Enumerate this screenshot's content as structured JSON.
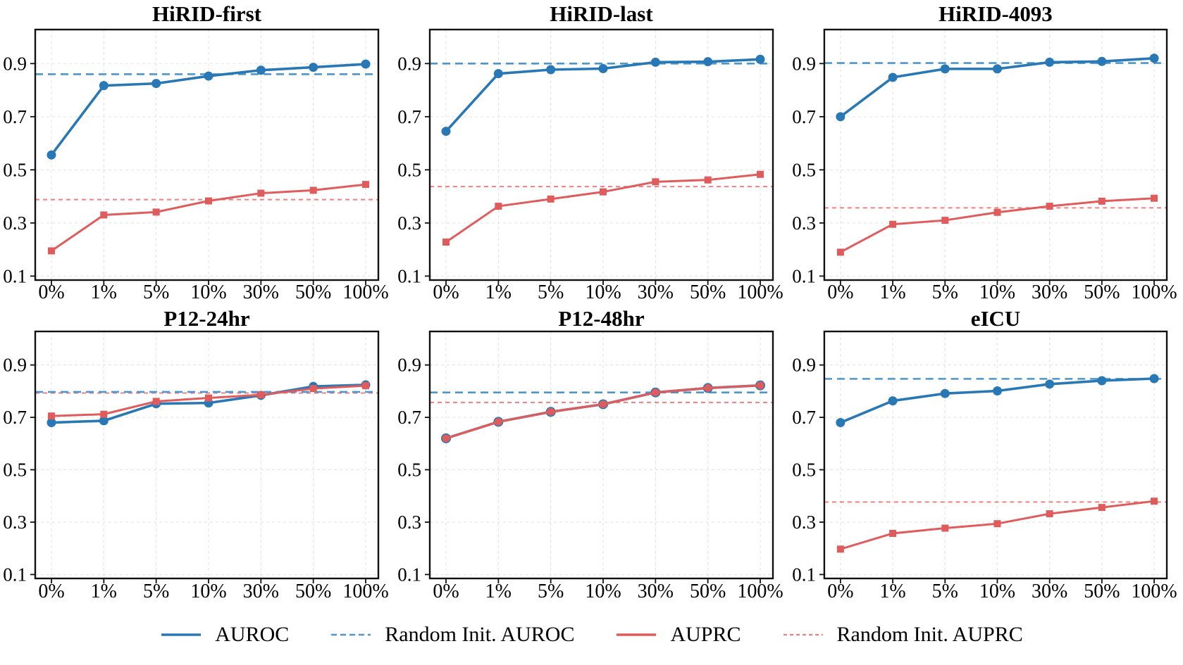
{
  "figure": {
    "description": "Fine-tuning data fraction vs. performance across six clinical datasets",
    "background": "#FFFFFF"
  },
  "colors": {
    "auroc_blue": "#2878B5",
    "random_auroc_blue": "#4C96CE",
    "auprc_red": "#E05C5C",
    "random_auprc_red": "#F08080",
    "grid": "#E5E5E5",
    "axis": "#111111",
    "text": "#000000"
  },
  "legend": {
    "items": [
      {
        "label": "AUROC",
        "style": "solid",
        "color_key": "auroc_blue"
      },
      {
        "label": "Random Init. AUROC",
        "style": "dashed",
        "color_key": "random_auroc_blue"
      },
      {
        "label": "AUPRC",
        "style": "solid",
        "color_key": "auprc_red"
      },
      {
        "label": "Random Init. AUPRC",
        "style": "dashed",
        "color_key": "random_auprc_red"
      }
    ]
  },
  "chart_data": [
    {
      "type": "line",
      "title": "HiRID-first",
      "categories": [
        "0%",
        "1%",
        "5%",
        "10%",
        "30%",
        "50%",
        "100%"
      ],
      "yticks": [
        0.1,
        0.3,
        0.5,
        0.7,
        0.9
      ],
      "ylim": [
        0.085,
        1.028
      ],
      "grid": true,
      "series": [
        {
          "name": "AUROC",
          "values": [
            0.556,
            0.817,
            0.825,
            0.853,
            0.875,
            0.886,
            0.898
          ]
        },
        {
          "name": "AUPRC",
          "values": [
            0.195,
            0.33,
            0.341,
            0.383,
            0.412,
            0.423,
            0.445
          ]
        },
        {
          "name": "Random Init. AUROC",
          "hline": 0.86
        },
        {
          "name": "Random Init. AUPRC",
          "hline": 0.388
        }
      ],
      "auprc_marker": "square",
      "overlap": false
    },
    {
      "type": "line",
      "title": "HiRID-last",
      "categories": [
        "0%",
        "1%",
        "5%",
        "10%",
        "30%",
        "50%",
        "100%"
      ],
      "yticks": [
        0.1,
        0.3,
        0.5,
        0.7,
        0.9
      ],
      "ylim": [
        0.085,
        1.028
      ],
      "grid": true,
      "series": [
        {
          "name": "AUROC",
          "values": [
            0.645,
            0.862,
            0.877,
            0.881,
            0.905,
            0.907,
            0.916
          ]
        },
        {
          "name": "AUPRC",
          "values": [
            0.228,
            0.363,
            0.39,
            0.417,
            0.455,
            0.462,
            0.483
          ]
        },
        {
          "name": "Random Init. AUROC",
          "hline": 0.9
        },
        {
          "name": "Random Init. AUPRC",
          "hline": 0.437
        }
      ],
      "auprc_marker": "square",
      "overlap": false
    },
    {
      "type": "line",
      "title": "HiRID-4093",
      "categories": [
        "0%",
        "1%",
        "5%",
        "10%",
        "30%",
        "50%",
        "100%"
      ],
      "yticks": [
        0.1,
        0.3,
        0.5,
        0.7,
        0.9
      ],
      "ylim": [
        0.085,
        1.028
      ],
      "grid": true,
      "series": [
        {
          "name": "AUROC",
          "values": [
            0.7,
            0.848,
            0.88,
            0.88,
            0.905,
            0.908,
            0.92
          ]
        },
        {
          "name": "AUPRC",
          "values": [
            0.19,
            0.295,
            0.31,
            0.34,
            0.363,
            0.382,
            0.393
          ]
        },
        {
          "name": "Random Init. AUROC",
          "hline": 0.902
        },
        {
          "name": "Random Init. AUPRC",
          "hline": 0.357
        }
      ],
      "auprc_marker": "square",
      "overlap": false
    },
    {
      "type": "line",
      "title": "P12-24hr",
      "categories": [
        "0%",
        "1%",
        "5%",
        "10%",
        "30%",
        "50%",
        "100%"
      ],
      "yticks": [
        0.1,
        0.3,
        0.5,
        0.7,
        0.9
      ],
      "ylim": [
        0.085,
        1.028
      ],
      "grid": true,
      "series": [
        {
          "name": "AUROC",
          "values": [
            0.68,
            0.687,
            0.752,
            0.755,
            0.784,
            0.818,
            0.824
          ]
        },
        {
          "name": "AUPRC",
          "values": [
            0.705,
            0.712,
            0.761,
            0.774,
            0.786,
            0.81,
            0.821
          ]
        },
        {
          "name": "Random Init. AUROC",
          "hline": 0.797
        },
        {
          "name": "Random Init. AUPRC",
          "hline": 0.793
        }
      ],
      "auprc_marker": "square",
      "overlap": false
    },
    {
      "type": "line",
      "title": "P12-48hr",
      "categories": [
        "0%",
        "1%",
        "5%",
        "10%",
        "30%",
        "50%",
        "100%"
      ],
      "yticks": [
        0.1,
        0.3,
        0.5,
        0.7,
        0.9
      ],
      "ylim": [
        0.085,
        1.028
      ],
      "grid": true,
      "series": [
        {
          "name": "AUROC",
          "values": [
            0.62,
            0.683,
            0.721,
            0.75,
            0.795,
            0.812,
            0.822
          ]
        },
        {
          "name": "AUPRC",
          "values": [
            0.62,
            0.683,
            0.721,
            0.75,
            0.795,
            0.812,
            0.822
          ]
        },
        {
          "name": "Random Init. AUROC",
          "hline": 0.795
        },
        {
          "name": "Random Init. AUPRC",
          "hline": 0.757
        }
      ],
      "auprc_marker": "circle",
      "overlap": true
    },
    {
      "type": "line",
      "title": "eICU",
      "categories": [
        "0%",
        "1%",
        "5%",
        "10%",
        "30%",
        "50%",
        "100%"
      ],
      "yticks": [
        0.1,
        0.3,
        0.5,
        0.7,
        0.9
      ],
      "ylim": [
        0.085,
        1.028
      ],
      "grid": true,
      "series": [
        {
          "name": "AUROC",
          "values": [
            0.68,
            0.763,
            0.791,
            0.801,
            0.827,
            0.84,
            0.848
          ]
        },
        {
          "name": "AUPRC",
          "values": [
            0.197,
            0.257,
            0.277,
            0.294,
            0.332,
            0.356,
            0.38
          ]
        },
        {
          "name": "Random Init. AUROC",
          "hline": 0.847
        },
        {
          "name": "Random Init. AUPRC",
          "hline": 0.377
        }
      ],
      "auprc_marker": "square",
      "overlap": false
    }
  ]
}
